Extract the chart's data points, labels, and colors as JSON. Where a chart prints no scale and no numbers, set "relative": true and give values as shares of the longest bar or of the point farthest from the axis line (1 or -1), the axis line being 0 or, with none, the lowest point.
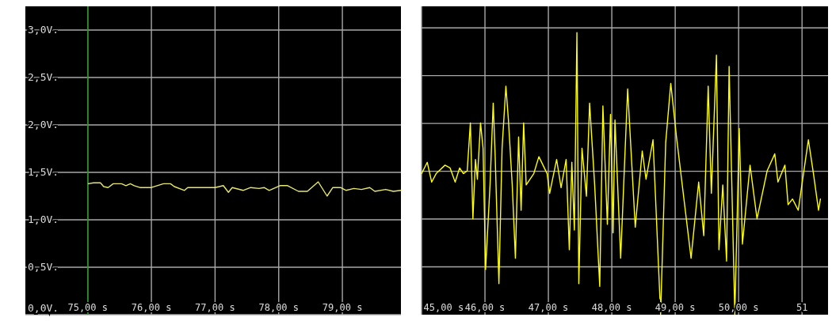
{
  "chart_data": [
    {
      "type": "line",
      "xlim": [
        74.02,
        79.92
      ],
      "ylim": [
        0,
        3.25
      ],
      "xticks": [
        {
          "value": 75,
          "label": "75,00 s"
        },
        {
          "value": 76,
          "label": "76,00 s"
        },
        {
          "value": 77,
          "label": "77,00 s"
        },
        {
          "value": 78,
          "label": "78,00 s"
        },
        {
          "value": 79,
          "label": "79,00 s"
        }
      ],
      "yticks": [
        {
          "value": 0,
          "label": "0,0V."
        },
        {
          "value": 0.5,
          "label": "0,5V."
        },
        {
          "value": 1,
          "label": "1,0V."
        },
        {
          "value": 1.5,
          "label": "1,5V."
        },
        {
          "value": 2,
          "label": "2,0V."
        },
        {
          "value": 2.5,
          "label": "2,5V."
        },
        {
          "value": 3,
          "label": "3,0V."
        }
      ],
      "grid": true,
      "ref_lines": [
        {
          "axis": "x",
          "value": 75,
          "color": "#2e8b2e"
        }
      ],
      "series": [
        {
          "color": "#e8e870",
          "x": [
            75.01,
            75.09,
            75.2,
            75.25,
            75.32,
            75.4,
            75.53,
            75.6,
            75.67,
            75.73,
            75.82,
            76.0,
            76.19,
            76.3,
            76.36,
            76.52,
            76.57,
            77.0,
            77.13,
            77.21,
            77.27,
            77.44,
            77.56,
            77.69,
            77.77,
            77.85,
            78.02,
            78.14,
            78.31,
            78.45,
            78.62,
            78.76,
            78.85,
            78.97,
            79.06,
            79.18,
            79.3,
            79.43,
            79.51,
            79.68,
            79.8,
            79.92
          ],
          "values": [
            1.38,
            1.39,
            1.39,
            1.35,
            1.34,
            1.38,
            1.38,
            1.36,
            1.38,
            1.36,
            1.34,
            1.34,
            1.38,
            1.38,
            1.35,
            1.31,
            1.34,
            1.34,
            1.36,
            1.29,
            1.34,
            1.31,
            1.34,
            1.33,
            1.34,
            1.31,
            1.36,
            1.36,
            1.3,
            1.3,
            1.4,
            1.25,
            1.34,
            1.34,
            1.31,
            1.33,
            1.32,
            1.34,
            1.3,
            1.32,
            1.3,
            1.31
          ]
        }
      ]
    },
    {
      "type": "line",
      "relative": true,
      "xlim": [
        45,
        51.41
      ],
      "xticks": [
        {
          "value": 45,
          "label": "45,00 s"
        },
        {
          "value": 46,
          "label": "46,00 s"
        },
        {
          "value": 47,
          "label": "47,00 s"
        },
        {
          "value": 48,
          "label": "48,00 s"
        },
        {
          "value": 49,
          "label": "49,00 s"
        },
        {
          "value": 50,
          "label": "50,00 s"
        },
        51
      ],
      "tick_labels": "x",
      "grid": true,
      "series": [
        {
          "color": "#ffff00",
          "x": [
            45.0,
            45.09,
            45.16,
            45.23,
            45.37,
            45.45,
            45.53,
            45.6,
            45.66,
            45.72,
            45.77,
            45.81,
            45.85,
            45.88,
            45.93,
            45.97,
            46.01,
            46.08,
            46.13,
            46.16,
            46.22,
            46.27,
            46.33,
            46.37,
            46.43,
            46.48,
            46.53,
            46.57,
            46.61,
            46.65,
            46.77,
            46.85,
            46.98,
            47.02,
            47.13,
            47.2,
            47.28,
            47.33,
            47.37,
            47.41,
            47.45,
            47.48,
            47.53,
            47.6,
            47.65,
            47.73,
            47.81,
            47.86,
            47.93,
            47.98,
            48.02,
            48.05,
            48.14,
            48.25,
            48.37,
            48.48,
            48.54,
            48.65,
            48.77,
            48.85,
            48.93,
            49.02,
            49.25,
            49.37,
            49.45,
            49.52,
            49.57,
            49.65,
            49.69,
            49.75,
            49.81,
            49.85,
            49.94,
            50.01,
            50.06,
            50.18,
            50.29,
            50.45,
            50.57,
            50.62,
            50.73,
            50.78,
            50.85,
            50.94,
            51.1,
            51.18,
            51.26,
            51.29
          ],
          "values": [
            0.5,
            0.54,
            0.47,
            0.5,
            0.53,
            0.52,
            0.47,
            0.52,
            0.5,
            0.51,
            0.68,
            0.34,
            0.55,
            0.48,
            0.68,
            0.59,
            0.16,
            0.46,
            0.75,
            0.57,
            0.11,
            0.59,
            0.81,
            0.69,
            0.46,
            0.2,
            0.63,
            0.37,
            0.68,
            0.46,
            0.5,
            0.56,
            0.5,
            0.43,
            0.55,
            0.45,
            0.55,
            0.23,
            0.54,
            0.3,
            1.0,
            0.11,
            0.59,
            0.42,
            0.75,
            0.46,
            0.1,
            0.74,
            0.32,
            0.71,
            0.29,
            0.69,
            0.2,
            0.8,
            0.31,
            0.58,
            0.48,
            0.62,
            0.0,
            0.61,
            0.82,
            0.63,
            0.2,
            0.47,
            0.28,
            0.81,
            0.43,
            0.92,
            0.23,
            0.46,
            0.19,
            0.88,
            0.0,
            0.66,
            0.25,
            0.53,
            0.34,
            0.51,
            0.57,
            0.47,
            0.53,
            0.39,
            0.41,
            0.37,
            0.62,
            0.5,
            0.37,
            0.41
          ]
        }
      ]
    }
  ]
}
